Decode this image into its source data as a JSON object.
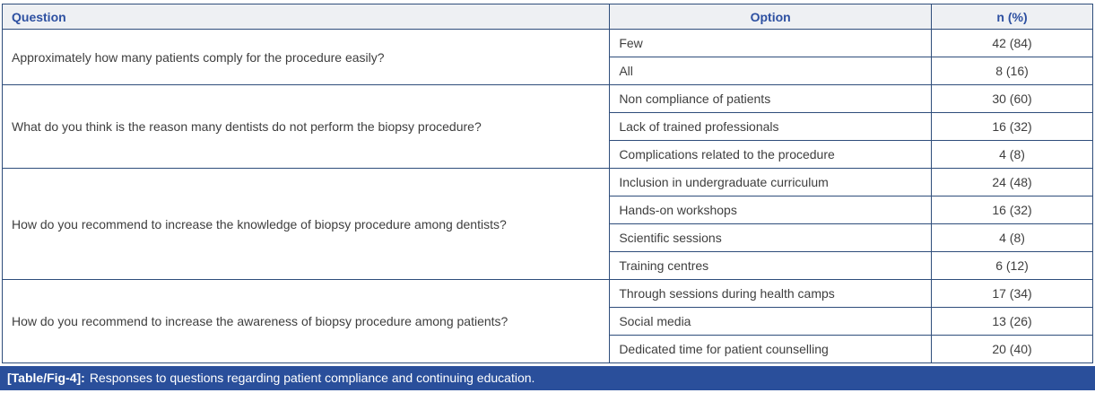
{
  "table": {
    "columns": [
      "Question",
      "Option",
      "n (%)"
    ],
    "groups": [
      {
        "question": "Approximately how many patients comply for the procedure easily?",
        "rows": [
          {
            "option": "Few",
            "n": "42 (84)"
          },
          {
            "option": "All",
            "n": "8 (16)"
          }
        ]
      },
      {
        "question": "What do you think is the reason many dentists do not perform the biopsy procedure?",
        "rows": [
          {
            "option": "Non compliance of patients",
            "n": "30 (60)"
          },
          {
            "option": "Lack of trained professionals",
            "n": "16 (32)"
          },
          {
            "option": "Complications related to the procedure",
            "n": "4 (8)"
          }
        ]
      },
      {
        "question": "How do you recommend to increase the knowledge of biopsy procedure among dentists?",
        "rows": [
          {
            "option": "Inclusion in undergraduate curriculum",
            "n": "24 (48)"
          },
          {
            "option": "Hands-on workshops",
            "n": "16 (32)"
          },
          {
            "option": "Scientific sessions",
            "n": "4 (8)"
          },
          {
            "option": "Training centres",
            "n": "6 (12)"
          }
        ]
      },
      {
        "question": "How do you recommend to increase the awareness of biopsy procedure among patients?",
        "rows": [
          {
            "option": "Through sessions during health camps",
            "n": "17 (34)"
          },
          {
            "option": "Social media",
            "n": "13 (26)"
          },
          {
            "option": "Dedicated time for patient counselling",
            "n": "20 (40)"
          }
        ]
      }
    ]
  },
  "caption": {
    "label": "[Table/Fig-4]:",
    "text": "Responses to questions regarding patient compliance and continuing education."
  },
  "colors": {
    "border": "#2e4d7b",
    "header_background": "#eef0f3",
    "header_text": "#2d50a1",
    "body_text": "#3e3e3e",
    "caption_background": "#2a4f9b",
    "caption_text": "#ffffff"
  }
}
